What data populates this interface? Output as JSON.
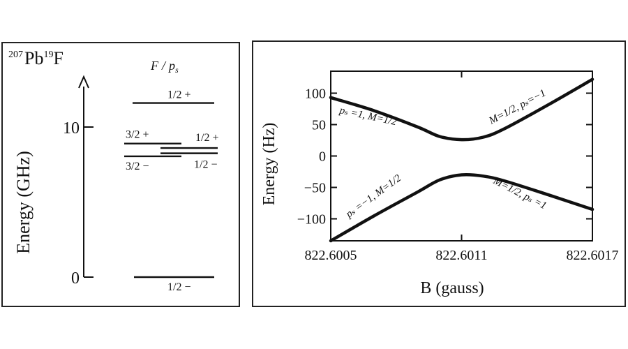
{
  "left_panel": {
    "molecule": {
      "mass_pb": "207",
      "sym_pb": "Pb",
      "mass_f": "19",
      "sym_f": "F"
    },
    "column_header": {
      "f": "F",
      "slash": "/",
      "p": "p",
      "sub": "s"
    },
    "axis_label": "Energy (GHz)",
    "ticks": [
      {
        "value": 10,
        "label": "10"
      },
      {
        "value": 0,
        "label": "0"
      }
    ],
    "levels": [
      {
        "energy": 11.6,
        "label": "1/2 +"
      },
      {
        "energy": 8.9,
        "label": "3/2 +"
      },
      {
        "energy": 8.6,
        "label": "1/2 +"
      },
      {
        "energy": 8.05,
        "label": "3/2 −"
      },
      {
        "energy": 8.25,
        "label": "1/2 −"
      },
      {
        "energy": 0.0,
        "label": "1/2 −"
      }
    ]
  },
  "chart_data": {
    "type": "line",
    "xlabel": "B  (gauss)",
    "ylabel": "Energy (Hz)",
    "xlim": [
      822.6005,
      822.6017
    ],
    "ylim": [
      -135,
      135
    ],
    "x_ticks": [
      {
        "value": 822.6005,
        "label": "822.6005"
      },
      {
        "value": 822.6011,
        "label": "822.6011"
      },
      {
        "value": 822.6017,
        "label": "822.6017"
      }
    ],
    "y_ticks": [
      {
        "value": 100,
        "label": "100"
      },
      {
        "value": 50,
        "label": "50"
      },
      {
        "value": 0,
        "label": "0"
      },
      {
        "value": -50,
        "label": "−50"
      },
      {
        "value": -100,
        "label": "−100"
      }
    ],
    "series": [
      {
        "x": [
          822.6005,
          822.6007,
          822.6009,
          822.601,
          822.6011,
          822.6012,
          822.6013,
          822.6015,
          822.6017
        ],
        "y": [
          93,
          72,
          46,
          31,
          26,
          30,
          44,
          82,
          122
        ]
      },
      {
        "x": [
          822.6005,
          822.6007,
          822.6009,
          822.601,
          822.6011,
          822.6012,
          822.6013,
          822.6015,
          822.6017
        ],
        "y": [
          -136,
          -95,
          -57,
          -38,
          -30,
          -32,
          -40,
          -62,
          -85
        ]
      }
    ],
    "annotations": [
      {
        "text": "pₛ =1, M=1/2"
      },
      {
        "text": "M=1/2, pₛ=−1"
      },
      {
        "text": "pₛ =−1, M=1/2"
      },
      {
        "text": "M=1/2, pₛ =1"
      }
    ]
  }
}
